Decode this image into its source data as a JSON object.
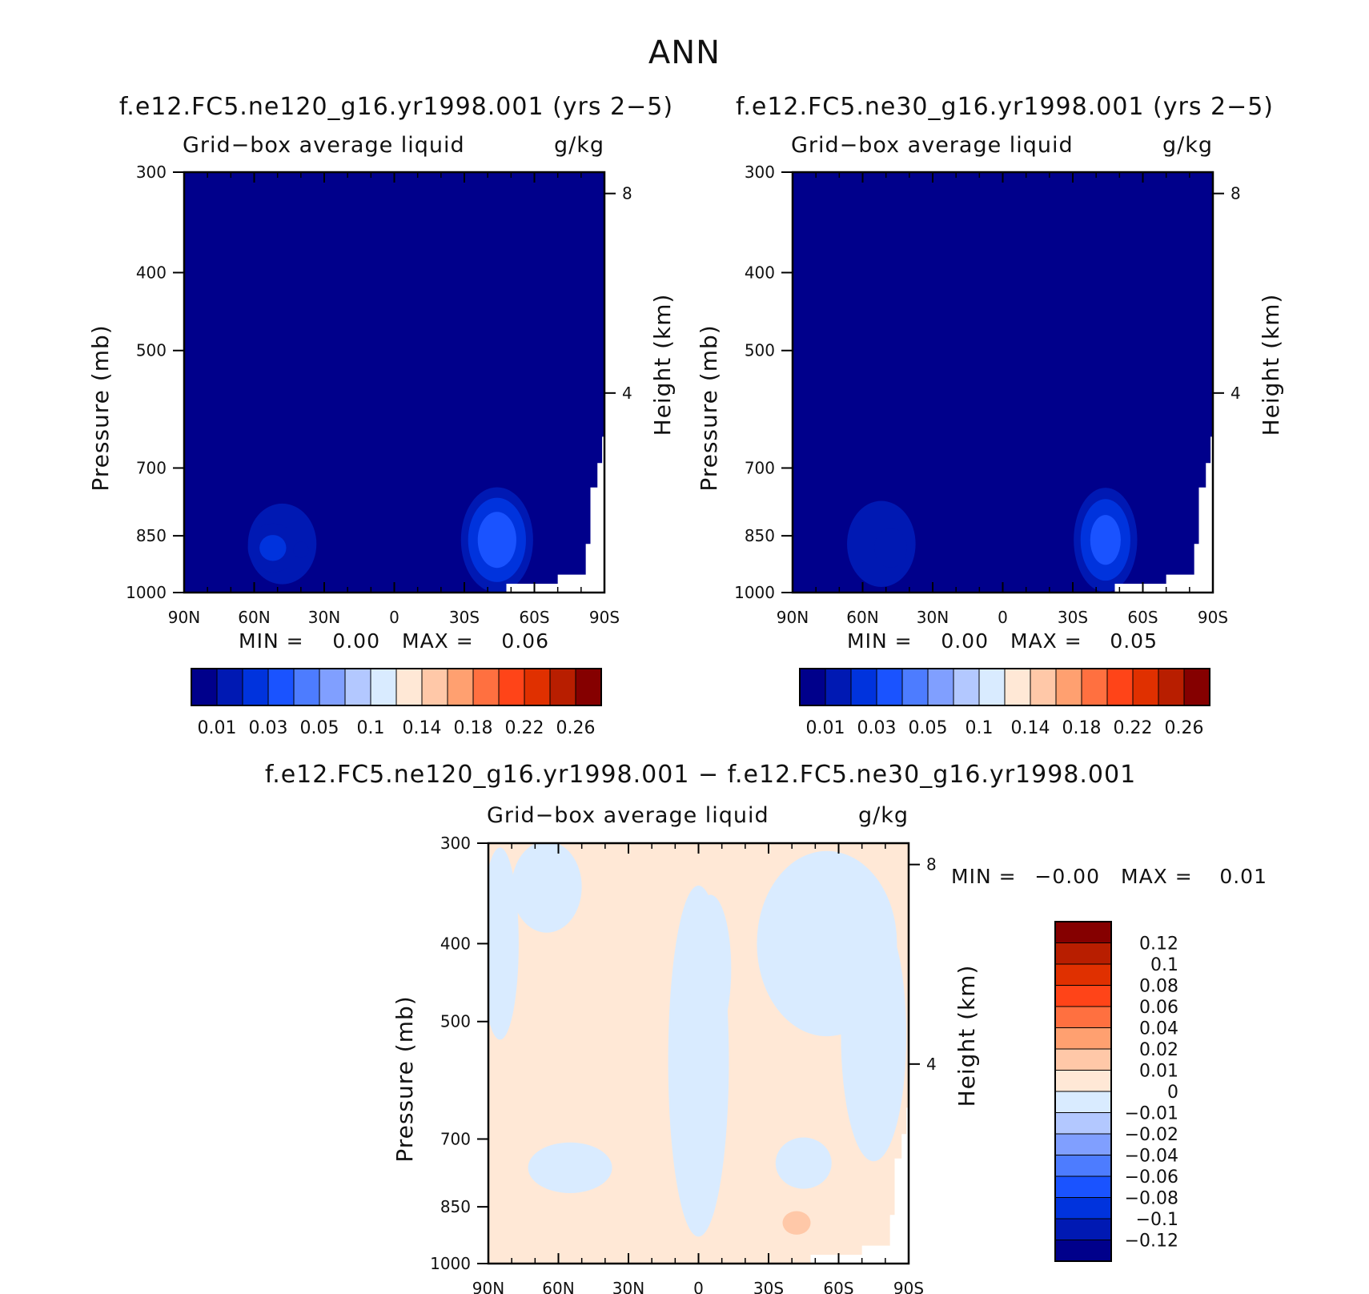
{
  "figure": {
    "title": "ANN",
    "colors": {
      "background": "#ffffff",
      "frame": "#000000",
      "missing": "#ffffff"
    }
  },
  "chart_data": [
    {
      "type": "heatmap",
      "title": "f.e12.FC5.ne120_g16.yr1998.001 (yrs 2−5)",
      "variable": "Grid−box average liquid",
      "units": "g/kg",
      "ylabel": "Pressure (mb)",
      "y2label": "Height (km)",
      "x_ticks": [
        "90N",
        "60N",
        "30N",
        "0",
        "30S",
        "60S",
        "90S"
      ],
      "y_ticks": [
        "300",
        "400",
        "500",
        "700",
        "850",
        "1000"
      ],
      "y2_ticks": [
        "8",
        "4"
      ],
      "ylim": [
        1000,
        300
      ],
      "xlim": [
        90,
        -90
      ],
      "min_label": "MIN =",
      "min_value": "0.00",
      "max_label": "MAX =",
      "max_value": "0.06",
      "levels": [
        0.01,
        0.02,
        0.03,
        0.04,
        0.05,
        0.07,
        0.1,
        0.12,
        0.14,
        0.16,
        0.18,
        0.2,
        0.22,
        0.24,
        0.26
      ],
      "colorbar_labels": [
        "0.01",
        "0.03",
        "0.05",
        "0.1",
        "0.14",
        "0.18",
        "0.22",
        "0.26"
      ],
      "colors": [
        "#00008b",
        "#0019b3",
        "#0033dd",
        "#1a53ff",
        "#4d7cff",
        "#809fff",
        "#b3c8ff",
        "#d9ebff",
        "#ffe8d6",
        "#ffc8a8",
        "#ffa070",
        "#ff7040",
        "#ff4418",
        "#e03000",
        "#b81e00",
        "#850000"
      ],
      "blobs": [
        {
          "lat": 48,
          "p": 870,
          "rlat": 22,
          "rp": 150,
          "v": 0.018
        },
        {
          "lat": 52,
          "p": 880,
          "rlat": 14,
          "rp": 80,
          "v": 0.024
        },
        {
          "lat": 40,
          "p": 885,
          "rlat": 8,
          "rp": 50,
          "v": 0.012
        },
        {
          "lat": 25,
          "p": 930,
          "rlat": 20,
          "rp": 60,
          "v": 0.006
        },
        {
          "lat": 0,
          "p": 920,
          "rlat": 18,
          "rp": 80,
          "v": 0.008
        },
        {
          "lat": -10,
          "p": 910,
          "rlat": 8,
          "rp": 40,
          "v": 0.01
        },
        {
          "lat": -44,
          "p": 860,
          "rlat": 18,
          "rp": 150,
          "v": 0.038
        },
        {
          "lat": -45,
          "p": 860,
          "rlat": 8,
          "rp": 40,
          "v": 0.02
        }
      ]
    },
    {
      "type": "heatmap",
      "title": "f.e12.FC5.ne30_g16.yr1998.001 (yrs 2−5)",
      "variable": "Grid−box average liquid",
      "units": "g/kg",
      "ylabel": "Pressure (mb)",
      "y2label": "Height (km)",
      "x_ticks": [
        "90N",
        "60N",
        "30N",
        "0",
        "30S",
        "60S",
        "90S"
      ],
      "y_ticks": [
        "300",
        "400",
        "500",
        "700",
        "850",
        "1000"
      ],
      "y2_ticks": [
        "8",
        "4"
      ],
      "ylim": [
        1000,
        300
      ],
      "xlim": [
        90,
        -90
      ],
      "min_label": "MIN =",
      "min_value": "0.00",
      "max_label": "MAX =",
      "max_value": "0.05",
      "levels": [
        0.01,
        0.02,
        0.03,
        0.04,
        0.05,
        0.07,
        0.1,
        0.12,
        0.14,
        0.16,
        0.18,
        0.2,
        0.22,
        0.24,
        0.26
      ],
      "colorbar_labels": [
        "0.01",
        "0.03",
        "0.05",
        "0.1",
        "0.14",
        "0.18",
        "0.22",
        "0.26"
      ],
      "colors": [
        "#00008b",
        "#0019b3",
        "#0033dd",
        "#1a53ff",
        "#4d7cff",
        "#809fff",
        "#b3c8ff",
        "#d9ebff",
        "#ffe8d6",
        "#ffc8a8",
        "#ffa070",
        "#ff7040",
        "#ff4418",
        "#e03000",
        "#b81e00",
        "#850000"
      ],
      "blobs": [
        {
          "lat": 52,
          "p": 870,
          "rlat": 22,
          "rp": 160,
          "v": 0.018
        },
        {
          "lat": 48,
          "p": 880,
          "rlat": 10,
          "rp": 70,
          "v": 0.02
        },
        {
          "lat": 20,
          "p": 930,
          "rlat": 22,
          "rp": 60,
          "v": 0.005
        },
        {
          "lat": -5,
          "p": 900,
          "rlat": 12,
          "rp": 60,
          "v": 0.007
        },
        {
          "lat": -44,
          "p": 860,
          "rlat": 16,
          "rp": 150,
          "v": 0.036
        },
        {
          "lat": -45,
          "p": 860,
          "rlat": 7,
          "rp": 40,
          "v": 0.016
        }
      ]
    },
    {
      "type": "heatmap",
      "title": "f.e12.FC5.ne120_g16.yr1998.001 − f.e12.FC5.ne30_g16.yr1998.001",
      "variable": "Grid−box average liquid",
      "units": "g/kg",
      "ylabel": "Pressure (mb)",
      "y2label": "Height (km)",
      "x_ticks": [
        "90N",
        "60N",
        "30N",
        "0",
        "30S",
        "60S",
        "90S"
      ],
      "y_ticks": [
        "300",
        "400",
        "500",
        "700",
        "850",
        "1000"
      ],
      "y2_ticks": [
        "8",
        "4"
      ],
      "ylim": [
        1000,
        300
      ],
      "xlim": [
        90,
        -90
      ],
      "min_label": "MIN =",
      "min_value": "−0.00",
      "max_label": "MAX =",
      "max_value": "0.01",
      "colorbar_labels": [
        "0.12",
        "0.1",
        "0.08",
        "0.06",
        "0.04",
        "0.02",
        "0.01",
        "0",
        "−0.01",
        "−0.02",
        "−0.04",
        "−0.06",
        "−0.08",
        "−0.1",
        "−0.12"
      ],
      "colors": [
        "#00008b",
        "#0019b3",
        "#0033dd",
        "#1a53ff",
        "#4d7cff",
        "#809fff",
        "#b3c8ff",
        "#d9ebff",
        "#ffe8d6",
        "#ffc8a8",
        "#ffa070",
        "#ff7040",
        "#ff4418",
        "#e03000",
        "#b81e00",
        "#850000"
      ],
      "regions": [
        {
          "lat": 85,
          "p": 400,
          "rlat": 8,
          "rp": 120,
          "v": -1
        },
        {
          "lat": 65,
          "p": 340,
          "rlat": 15,
          "rp": 50,
          "v": -1
        },
        {
          "lat": 0,
          "p": 560,
          "rlat": 13,
          "rp": 260,
          "v": -1
        },
        {
          "lat": -5,
          "p": 430,
          "rlat": 9,
          "rp": 90,
          "v": -1
        },
        {
          "lat": -55,
          "p": 400,
          "rlat": 30,
          "rp": 110,
          "v": -1
        },
        {
          "lat": -75,
          "p": 520,
          "rlat": 14,
          "rp": 180,
          "v": -1
        },
        {
          "lat": 55,
          "p": 760,
          "rlat": 18,
          "rp": 55,
          "v": -1
        },
        {
          "lat": -45,
          "p": 750,
          "rlat": 12,
          "rp": 55,
          "v": -1
        },
        {
          "lat": -42,
          "p": 890,
          "rlat": 6,
          "rp": 30,
          "v": 1
        }
      ]
    }
  ]
}
